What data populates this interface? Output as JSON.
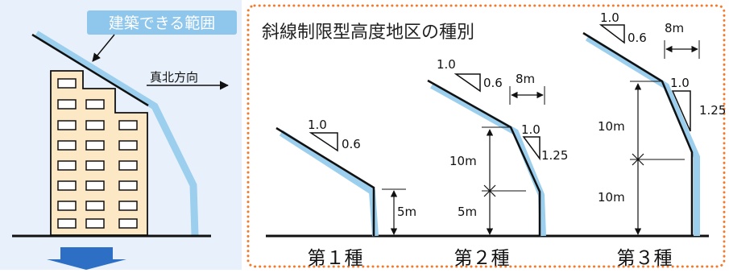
{
  "labels": {
    "buildable_area": "建築できる範囲",
    "north_direction": "真北方向",
    "panel_title": "斜線制限型高度地区の種別"
  },
  "types": [
    {
      "name": "第１種",
      "rise": "1.0",
      "run": "0.6",
      "base_height": "5m"
    },
    {
      "name": "第２種",
      "rise": "1.0",
      "run": "0.6",
      "setback": "8m",
      "lower_rise": "1.0",
      "lower_run": "1.25",
      "upper_height": "10m",
      "base_height": "5m"
    },
    {
      "name": "第３種",
      "rise": "1.0",
      "run": "0.6",
      "setback": "8m",
      "lower_rise": "1.0",
      "lower_run": "1.25",
      "upper_height": "10m",
      "base_height": "10m"
    }
  ],
  "colors": {
    "page_bg": "#ffffff",
    "left_panel_bg": "#e8f1fb",
    "dotted_border": "#f47a2b",
    "label_bg": "#8ec6ec",
    "envelope_blue": "#9ccfee",
    "building_fill": "#fde8c6",
    "arrow_blue": "#2d6fc4"
  }
}
